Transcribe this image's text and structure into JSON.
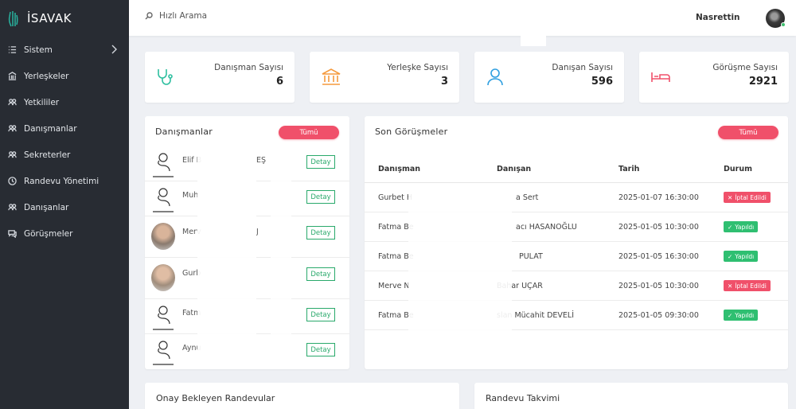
{
  "app": {
    "name": "İSAVAK"
  },
  "sidebar": {
    "items": [
      {
        "label": "Sistem",
        "icon": "list-icon",
        "has_submenu": true
      },
      {
        "label": "Yerleşkeler",
        "icon": "building-icon"
      },
      {
        "label": "Yetkililer",
        "icon": "users-icon"
      },
      {
        "label": "Danışmanlar",
        "icon": "users-icon"
      },
      {
        "label": "Sekreterler",
        "icon": "users-icon"
      },
      {
        "label": "Randevu Yönetimi",
        "icon": "clock-icon"
      },
      {
        "label": "Danışanlar",
        "icon": "users-icon"
      },
      {
        "label": "Görüşmeler",
        "icon": "chat-icon"
      }
    ]
  },
  "topbar": {
    "search_placeholder": "Hızlı Arama",
    "username": "Nasrettin"
  },
  "stats": [
    {
      "label": "Danışman Sayısı",
      "value": "6",
      "icon": "stethoscope-icon",
      "color": "#2fbfa0"
    },
    {
      "label": "Yerleşke Sayısı",
      "value": "3",
      "icon": "bank-icon",
      "color": "#f59a3d"
    },
    {
      "label": "Danışan Sayısı",
      "value": "596",
      "icon": "user-icon",
      "color": "#2f9fe0"
    },
    {
      "label": "Görüşme Sayısı",
      "value": "2921",
      "icon": "bed-icon",
      "color": "#f0506a"
    }
  ],
  "consultants": {
    "title": "Danışmanlar",
    "all_label": "Tümü",
    "detail_label": "Detay",
    "rows": [
      {
        "name": "Elif B",
        "extra": "EŞ"
      },
      {
        "name": "Muh",
        "extra": ""
      },
      {
        "name": "Merv",
        "extra": "J"
      },
      {
        "name": "Gurb",
        "extra": ""
      },
      {
        "name": "Fatm",
        "extra": ""
      },
      {
        "name": "Aynu",
        "extra": ""
      }
    ]
  },
  "meetings": {
    "title": "Son Görüşmeler",
    "all_label": "Tümü",
    "columns": [
      "Danışman",
      "Danışan",
      "Tarih",
      "Durum"
    ],
    "rows": [
      {
        "consultant": "Gurbet H",
        "client": "a Sert",
        "date": "2025-01-07 16:30:00",
        "status": "İptal Edildi",
        "status_type": "cancel"
      },
      {
        "consultant": "Fatma Be",
        "client": "acı HASANOĞLU",
        "date": "2025-01-05 10:30:00",
        "status": "Yapıldı",
        "status_type": "done"
      },
      {
        "consultant": "Fatma Be",
        "client": "PULAT",
        "date": "2025-01-05 16:30:00",
        "status": "Yapıldı",
        "status_type": "done"
      },
      {
        "consultant": "Merve N",
        "client": "Bahar UÇAR",
        "date": "2025-01-05 10:30:00",
        "status": "İptal Edildi",
        "status_type": "cancel"
      },
      {
        "consultant": "Fatma Be",
        "client": "slan Mücahit DEVELİ",
        "date": "2025-01-05 09:30:00",
        "status": "Yapıldı",
        "status_type": "done"
      }
    ]
  },
  "pending": {
    "title": "Onay Bekleyen Randevular"
  },
  "calendar": {
    "title": "Randevu Takvimi"
  }
}
